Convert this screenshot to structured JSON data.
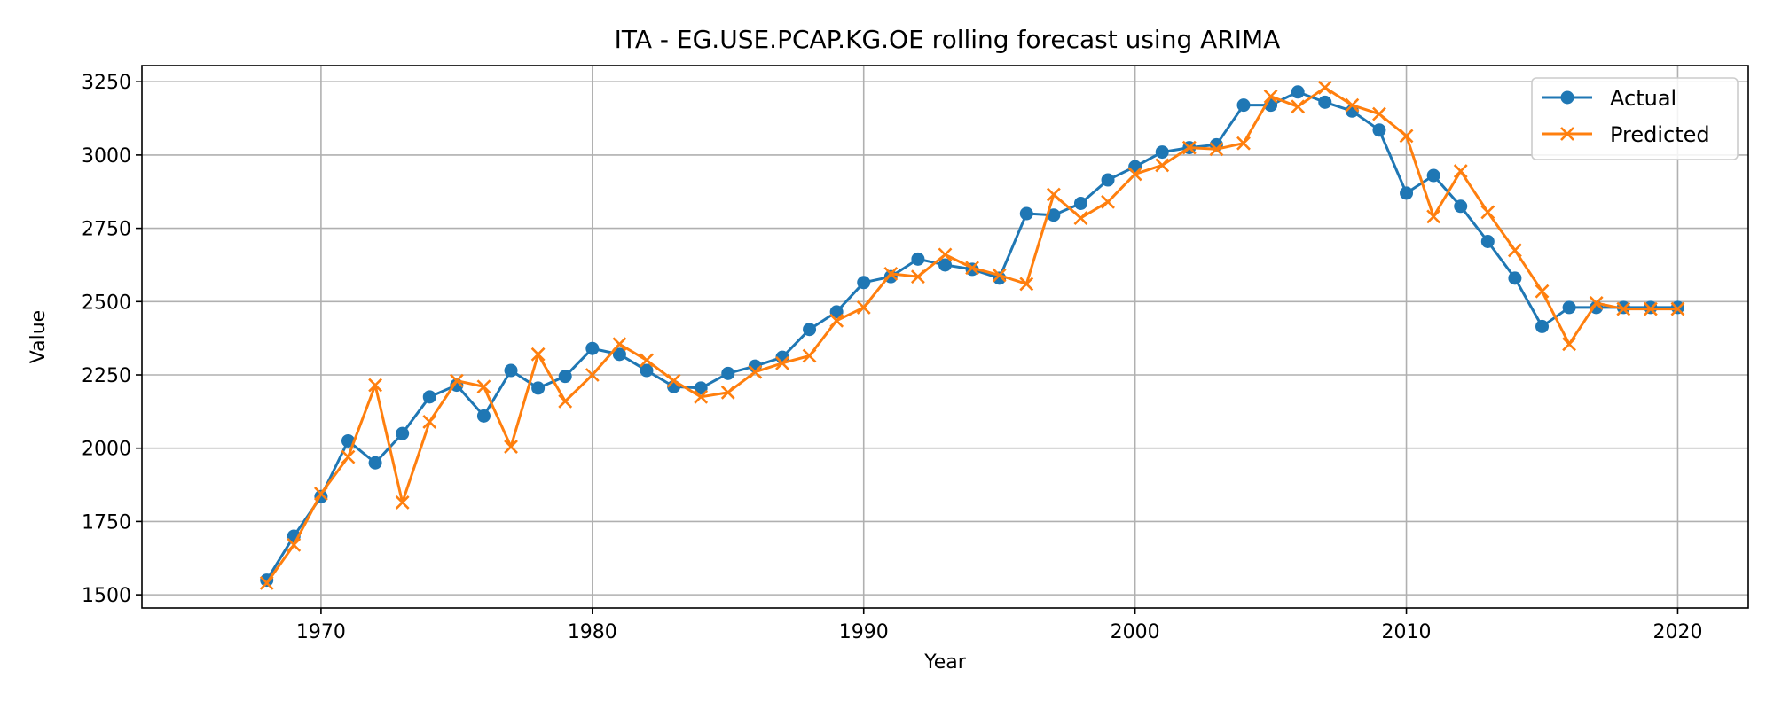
{
  "chart_data": {
    "type": "line",
    "title": "ITA - EG.USE.PCAP.KG.OE rolling forecast using ARIMA",
    "xlabel": "Year",
    "ylabel": "Value",
    "xlim": [
      1963.4,
      2022.6
    ],
    "ylim": [
      1455,
      3305
    ],
    "x_ticks": [
      1970,
      1980,
      1990,
      2000,
      2010,
      2020
    ],
    "y_ticks": [
      1500,
      1750,
      2000,
      2250,
      2500,
      2750,
      3000,
      3250
    ],
    "grid": true,
    "legend_position": "upper right",
    "x": [
      1968,
      1969,
      1970,
      1971,
      1972,
      1973,
      1974,
      1975,
      1976,
      1977,
      1978,
      1979,
      1980,
      1981,
      1982,
      1983,
      1984,
      1985,
      1986,
      1987,
      1988,
      1989,
      1990,
      1991,
      1992,
      1993,
      1994,
      1995,
      1996,
      1997,
      1998,
      1999,
      2000,
      2001,
      2002,
      2003,
      2004,
      2005,
      2006,
      2007,
      2008,
      2009,
      2010,
      2011,
      2012,
      2013,
      2014,
      2015,
      2016,
      2017,
      2018,
      2019,
      2020
    ],
    "series": [
      {
        "name": "Actual",
        "color": "#1f77b4",
        "marker": "circle",
        "values": [
          1550,
          1700,
          1835,
          2025,
          1950,
          2050,
          2175,
          2215,
          2110,
          2265,
          2205,
          2245,
          2340,
          2320,
          2265,
          2210,
          2205,
          2255,
          2280,
          2310,
          2405,
          2465,
          2565,
          2585,
          2645,
          2625,
          2610,
          2580,
          2800,
          2795,
          2835,
          2915,
          2960,
          3010,
          3025,
          3035,
          3170,
          3170,
          3215,
          3180,
          3150,
          3085,
          2870,
          2930,
          2825,
          2705,
          2580,
          2415,
          2480,
          2480,
          2480,
          2480,
          2480
        ]
      },
      {
        "name": "Predicted",
        "color": "#ff7f0e",
        "marker": "x",
        "values": [
          1540,
          1670,
          1845,
          1970,
          2215,
          1815,
          2090,
          2230,
          2210,
          2005,
          2320,
          2160,
          2250,
          2355,
          2300,
          2230,
          2175,
          2190,
          2260,
          2290,
          2315,
          2435,
          2480,
          2595,
          2585,
          2660,
          2615,
          2590,
          2560,
          2865,
          2785,
          2840,
          2935,
          2965,
          3025,
          3020,
          3040,
          3200,
          3165,
          3230,
          3170,
          3140,
          3065,
          2790,
          2945,
          2805,
          2675,
          2535,
          2355,
          2495,
          2475,
          2475,
          2475
        ]
      }
    ]
  }
}
